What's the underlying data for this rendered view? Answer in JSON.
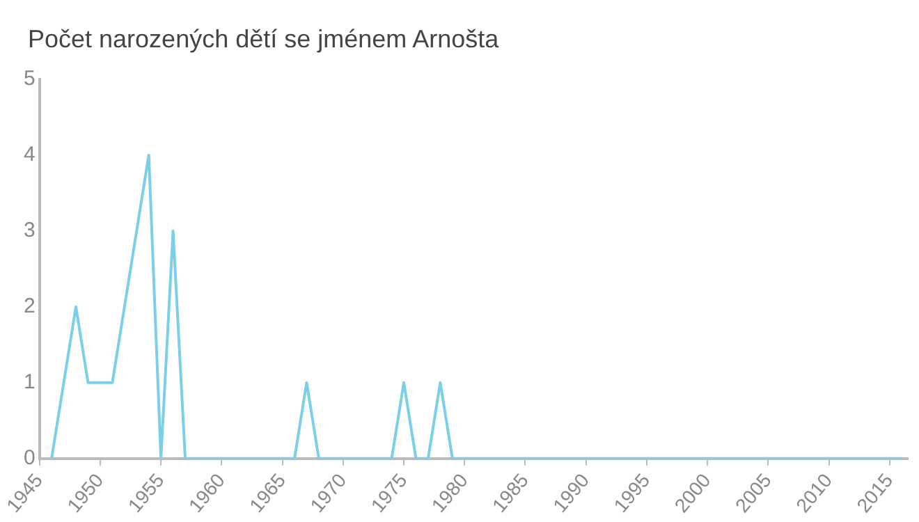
{
  "chart_data": {
    "type": "line",
    "title": "Počet narozených dětí se jménem Arnošta",
    "x": [
      1946,
      1947,
      1948,
      1949,
      1950,
      1951,
      1952,
      1953,
      1954,
      1955,
      1956,
      1957,
      1958,
      1959,
      1960,
      1961,
      1962,
      1963,
      1964,
      1965,
      1966,
      1967,
      1968,
      1969,
      1970,
      1971,
      1972,
      1973,
      1974,
      1975,
      1976,
      1977,
      1978,
      1979,
      1980,
      1981,
      1982,
      1983,
      1984,
      1985,
      1986,
      1987,
      1988,
      1989,
      1990,
      1991,
      1992,
      1993,
      1994,
      1995,
      1996,
      1997,
      1998,
      1999,
      2000,
      2001,
      2002,
      2003,
      2004,
      2005,
      2006,
      2007,
      2008,
      2009,
      2010,
      2011,
      2012,
      2013,
      2014,
      2015,
      2016
    ],
    "series": [
      {
        "color": "#7ccfe8",
        "values": [
          0,
          1,
          2,
          1,
          1,
          1,
          2,
          3,
          4,
          0,
          3,
          0,
          0,
          0,
          0,
          0,
          0,
          0,
          0,
          0,
          0,
          1,
          0,
          0,
          0,
          0,
          0,
          0,
          0,
          1,
          0,
          0,
          1,
          0,
          0,
          0,
          0,
          0,
          0,
          0,
          0,
          0,
          0,
          0,
          0,
          0,
          0,
          0,
          0,
          0,
          0,
          0,
          0,
          0,
          0,
          0,
          0,
          0,
          0,
          0,
          0,
          0,
          0,
          0,
          0,
          0,
          0,
          0,
          0,
          0,
          0
        ]
      }
    ],
    "xlim": [
      1945,
      2016.5
    ],
    "xticks": [
      1945,
      1950,
      1955,
      1960,
      1965,
      1970,
      1975,
      1980,
      1985,
      1990,
      1995,
      2000,
      2005,
      2010,
      2015
    ],
    "ylim": [
      0,
      5
    ],
    "yticks": [
      0,
      1,
      2,
      3,
      4,
      5
    ],
    "grid": false,
    "legend": false,
    "marker": "none",
    "line_style": "solid"
  }
}
